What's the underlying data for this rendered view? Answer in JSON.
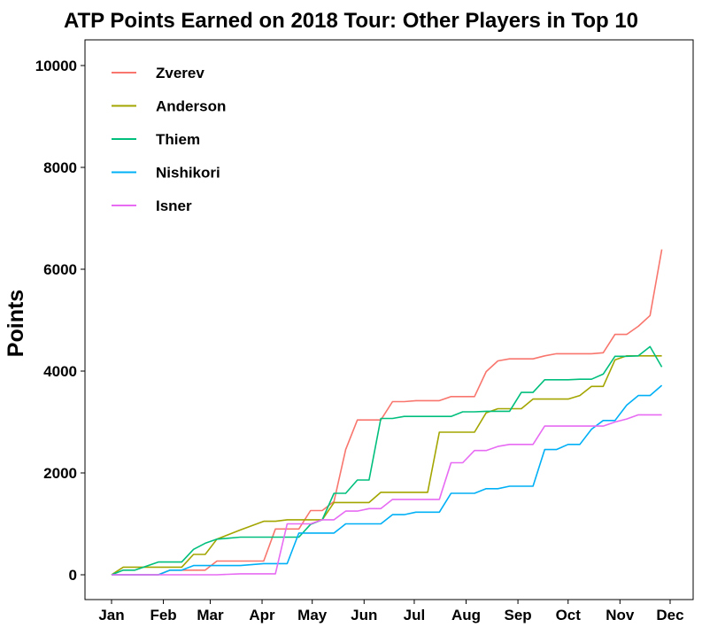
{
  "chart_data": {
    "type": "line",
    "title": "ATP Points Earned on 2018 Tour: Other Players in Top 10",
    "xlabel": "",
    "ylabel": "Points",
    "x_ticks": [
      "Jan",
      "Feb",
      "Mar",
      "Apr",
      "May",
      "Jun",
      "Jul",
      "Aug",
      "Sep",
      "Oct",
      "Nov",
      "Dec"
    ],
    "xlim": [
      "2018-01-01",
      "2018-12-01"
    ],
    "ylim": [
      0,
      10000
    ],
    "y_ticks": [
      0,
      2000,
      4000,
      6000,
      8000,
      10000
    ],
    "legend_position": "top-left",
    "grid": false,
    "series": [
      {
        "name": "Zverev",
        "color": "#F8766D",
        "x": [
          "2018-01-01",
          "2018-01-08",
          "2018-01-15",
          "2018-01-29",
          "2018-02-05",
          "2018-02-12",
          "2018-02-19",
          "2018-02-26",
          "2018-03-05",
          "2018-03-19",
          "2018-04-02",
          "2018-04-09",
          "2018-04-16",
          "2018-04-23",
          "2018-04-30",
          "2018-05-07",
          "2018-05-14",
          "2018-05-21",
          "2018-05-28",
          "2018-06-04",
          "2018-06-11",
          "2018-06-18",
          "2018-06-25",
          "2018-07-02",
          "2018-07-09",
          "2018-07-16",
          "2018-07-23",
          "2018-07-30",
          "2018-08-06",
          "2018-08-13",
          "2018-08-20",
          "2018-08-27",
          "2018-09-03",
          "2018-09-10",
          "2018-09-17",
          "2018-09-24",
          "2018-10-01",
          "2018-10-08",
          "2018-10-15",
          "2018-10-22",
          "2018-10-29",
          "2018-11-05",
          "2018-11-12",
          "2018-11-19",
          "2018-11-26"
        ],
        "y": [
          0,
          0,
          0,
          0,
          90,
          90,
          90,
          90,
          270,
          270,
          270,
          900,
          900,
          900,
          1260,
          1260,
          1440,
          2460,
          3040,
          3040,
          3040,
          3400,
          3400,
          3420,
          3420,
          3420,
          3500,
          3500,
          3500,
          3990,
          4200,
          4240,
          4240,
          4240,
          4300,
          4340,
          4340,
          4340,
          4340,
          4360,
          4720,
          4720,
          4880,
          5090,
          6390
        ]
      },
      {
        "name": "Anderson",
        "color": "#A3A500",
        "x": [
          "2018-01-01",
          "2018-01-08",
          "2018-01-15",
          "2018-01-29",
          "2018-02-05",
          "2018-02-12",
          "2018-02-19",
          "2018-02-26",
          "2018-03-05",
          "2018-03-19",
          "2018-04-02",
          "2018-04-09",
          "2018-04-16",
          "2018-04-23",
          "2018-04-30",
          "2018-05-07",
          "2018-05-14",
          "2018-05-21",
          "2018-05-28",
          "2018-06-04",
          "2018-06-11",
          "2018-06-18",
          "2018-06-25",
          "2018-07-02",
          "2018-07-09",
          "2018-07-16",
          "2018-07-23",
          "2018-07-30",
          "2018-08-06",
          "2018-08-13",
          "2018-08-20",
          "2018-08-27",
          "2018-09-03",
          "2018-09-10",
          "2018-09-17",
          "2018-09-24",
          "2018-10-01",
          "2018-10-08",
          "2018-10-15",
          "2018-10-22",
          "2018-10-29",
          "2018-11-05",
          "2018-11-12",
          "2018-11-19",
          "2018-11-26"
        ],
        "y": [
          0,
          150,
          150,
          150,
          150,
          150,
          400,
          400,
          700,
          880,
          1050,
          1050,
          1080,
          1080,
          1080,
          1080,
          1420,
          1420,
          1420,
          1420,
          1620,
          1620,
          1620,
          1620,
          1620,
          2800,
          2800,
          2800,
          2800,
          3180,
          3260,
          3260,
          3260,
          3450,
          3450,
          3450,
          3450,
          3520,
          3700,
          3700,
          4220,
          4300,
          4300,
          4300,
          4300
        ]
      },
      {
        "name": "Thiem",
        "color": "#00BF7D",
        "x": [
          "2018-01-01",
          "2018-01-08",
          "2018-01-15",
          "2018-01-29",
          "2018-02-05",
          "2018-02-12",
          "2018-02-19",
          "2018-02-26",
          "2018-03-05",
          "2018-03-19",
          "2018-04-02",
          "2018-04-09",
          "2018-04-16",
          "2018-04-23",
          "2018-04-30",
          "2018-05-07",
          "2018-05-14",
          "2018-05-21",
          "2018-05-28",
          "2018-06-04",
          "2018-06-11",
          "2018-06-18",
          "2018-06-25",
          "2018-07-02",
          "2018-07-09",
          "2018-07-16",
          "2018-07-23",
          "2018-07-30",
          "2018-08-06",
          "2018-08-13",
          "2018-08-20",
          "2018-08-27",
          "2018-09-03",
          "2018-09-10",
          "2018-09-17",
          "2018-09-24",
          "2018-10-01",
          "2018-10-08",
          "2018-10-15",
          "2018-10-22",
          "2018-10-29",
          "2018-11-05",
          "2018-11-12",
          "2018-11-19",
          "2018-11-26"
        ],
        "y": [
          0,
          90,
          90,
          250,
          250,
          250,
          500,
          620,
          700,
          740,
          740,
          740,
          740,
          740,
          990,
          1080,
          1600,
          1600,
          1860,
          1860,
          3070,
          3070,
          3110,
          3110,
          3110,
          3110,
          3110,
          3200,
          3200,
          3210,
          3210,
          3210,
          3580,
          3580,
          3830,
          3830,
          3830,
          3840,
          3840,
          3940,
          4290,
          4290,
          4300,
          4480,
          4080
        ]
      },
      {
        "name": "Nishikori",
        "color": "#00B0F6",
        "x": [
          "2018-01-01",
          "2018-01-08",
          "2018-01-15",
          "2018-01-29",
          "2018-02-05",
          "2018-02-12",
          "2018-02-19",
          "2018-02-26",
          "2018-03-05",
          "2018-03-19",
          "2018-04-02",
          "2018-04-09",
          "2018-04-16",
          "2018-04-23",
          "2018-04-30",
          "2018-05-07",
          "2018-05-14",
          "2018-05-21",
          "2018-05-28",
          "2018-06-04",
          "2018-06-11",
          "2018-06-18",
          "2018-06-25",
          "2018-07-02",
          "2018-07-09",
          "2018-07-16",
          "2018-07-23",
          "2018-07-30",
          "2018-08-06",
          "2018-08-13",
          "2018-08-20",
          "2018-08-27",
          "2018-09-03",
          "2018-09-10",
          "2018-09-17",
          "2018-09-24",
          "2018-10-01",
          "2018-10-08",
          "2018-10-15",
          "2018-10-22",
          "2018-10-29",
          "2018-11-05",
          "2018-11-12",
          "2018-11-19",
          "2018-11-26"
        ],
        "y": [
          0,
          0,
          0,
          0,
          90,
          90,
          180,
          180,
          180,
          180,
          220,
          220,
          220,
          820,
          820,
          820,
          820,
          1000,
          1000,
          1000,
          1000,
          1180,
          1180,
          1230,
          1230,
          1230,
          1600,
          1600,
          1600,
          1690,
          1690,
          1740,
          1740,
          1740,
          2460,
          2460,
          2560,
          2560,
          2860,
          3030,
          3030,
          3330,
          3520,
          3520,
          3720
        ]
      },
      {
        "name": "Isner",
        "color": "#E76BF3",
        "x": [
          "2018-01-01",
          "2018-01-08",
          "2018-01-15",
          "2018-01-29",
          "2018-02-05",
          "2018-02-12",
          "2018-02-19",
          "2018-02-26",
          "2018-03-05",
          "2018-03-19",
          "2018-04-02",
          "2018-04-09",
          "2018-04-16",
          "2018-04-23",
          "2018-04-30",
          "2018-05-07",
          "2018-05-14",
          "2018-05-21",
          "2018-05-28",
          "2018-06-04",
          "2018-06-11",
          "2018-06-18",
          "2018-06-25",
          "2018-07-02",
          "2018-07-09",
          "2018-07-16",
          "2018-07-23",
          "2018-07-30",
          "2018-08-06",
          "2018-08-13",
          "2018-08-20",
          "2018-08-27",
          "2018-09-03",
          "2018-09-10",
          "2018-09-17",
          "2018-09-24",
          "2018-10-01",
          "2018-10-08",
          "2018-10-15",
          "2018-10-22",
          "2018-10-29",
          "2018-11-05",
          "2018-11-12",
          "2018-11-19",
          "2018-11-26"
        ],
        "y": [
          0,
          0,
          0,
          0,
          0,
          0,
          0,
          0,
          0,
          20,
          20,
          20,
          1000,
          1000,
          1000,
          1080,
          1080,
          1250,
          1250,
          1300,
          1300,
          1480,
          1480,
          1480,
          1480,
          1480,
          2200,
          2200,
          2440,
          2440,
          2520,
          2560,
          2560,
          2560,
          2920,
          2920,
          2920,
          2920,
          2920,
          2920,
          3000,
          3060,
          3140,
          3140,
          3140
        ]
      }
    ]
  }
}
